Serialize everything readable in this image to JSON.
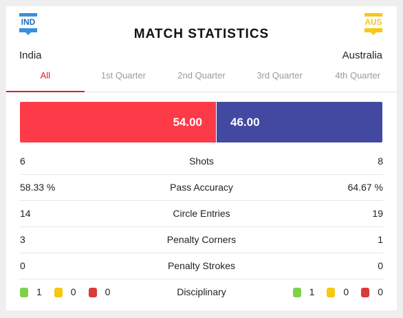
{
  "header": {
    "title": "MATCH STATISTICS",
    "home": {
      "code": "IND",
      "name": "India"
    },
    "away": {
      "code": "AUS",
      "name": "Australia"
    }
  },
  "tabs": [
    {
      "label": "All",
      "active": true
    },
    {
      "label": "1st Quarter"
    },
    {
      "label": "2nd Quarter"
    },
    {
      "label": "3rd Quarter"
    },
    {
      "label": "4th Quarter"
    }
  ],
  "possession": {
    "home": "54.00",
    "away": "46.00",
    "home_share": 54,
    "away_share": 46
  },
  "stats": [
    {
      "label": "Shots",
      "home": "6",
      "away": "8"
    },
    {
      "label": "Pass Accuracy",
      "home": "58.33 %",
      "away": "64.67 %"
    },
    {
      "label": "Circle Entries",
      "home": "14",
      "away": "19"
    },
    {
      "label": "Penalty Corners",
      "home": "3",
      "away": "1"
    },
    {
      "label": "Penalty Strokes",
      "home": "0",
      "away": "0"
    }
  ],
  "disciplinary": {
    "label": "Disciplinary",
    "home": {
      "green": "1",
      "yellow": "0",
      "red": "0"
    },
    "away": {
      "green": "1",
      "yellow": "0",
      "red": "0"
    }
  },
  "colors": {
    "home_bar": "#fd3a48",
    "away_bar": "#4349a0",
    "active_tab": "#d0202b"
  }
}
